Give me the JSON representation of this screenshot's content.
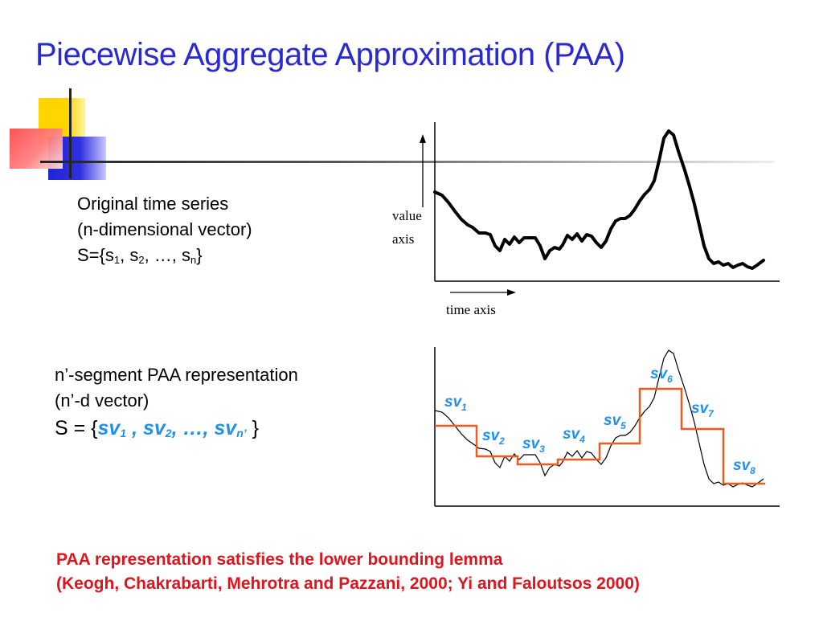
{
  "slide": {
    "title": "Piecewise Aggregate Approximation (PAA)"
  },
  "original": {
    "line1": "Original time series",
    "line2": "(n-dimensional vector)",
    "formula_prefix": "S={s",
    "sub1": "1",
    "sep1": ", s",
    "sub2": "2",
    "sep2": ", …, s",
    "subn": "n",
    "formula_suffix": "}"
  },
  "paa": {
    "line1": "n’-segment PAA representation",
    "line2": "(n’-d vector)",
    "formula_prefix": "S = {",
    "sv": "sv",
    "sub1": "1",
    "sep1": " , ",
    "sub2": "2",
    "sep2": ", …, ",
    "subn": "n’",
    "formula_suffix": " }"
  },
  "top_chart": {
    "value_axis_line1": "value",
    "value_axis_line2": "axis",
    "time_axis_label": "time axis"
  },
  "bottom_chart": {
    "segment_labels": [
      {
        "base": "sv",
        "sub": "1"
      },
      {
        "base": "sv",
        "sub": "2"
      },
      {
        "base": "sv",
        "sub": "3"
      },
      {
        "base": "sv",
        "sub": "4"
      },
      {
        "base": "sv",
        "sub": "5"
      },
      {
        "base": "sv",
        "sub": "6"
      },
      {
        "base": "sv",
        "sub": "7"
      },
      {
        "base": "sv",
        "sub": "8"
      }
    ]
  },
  "footer": {
    "line1": "PAA representation satisfies the lower bounding lemma",
    "line2": "(Keogh, Chakrabarti, Mehrotra and Pazzani, 2000;  Yi and Faloutsos 2000)"
  },
  "colors": {
    "title": "#2a2ad0",
    "paa_step": "#f05a1e",
    "segment_label": "#1f8ff0",
    "footer": "#e0141c"
  }
}
